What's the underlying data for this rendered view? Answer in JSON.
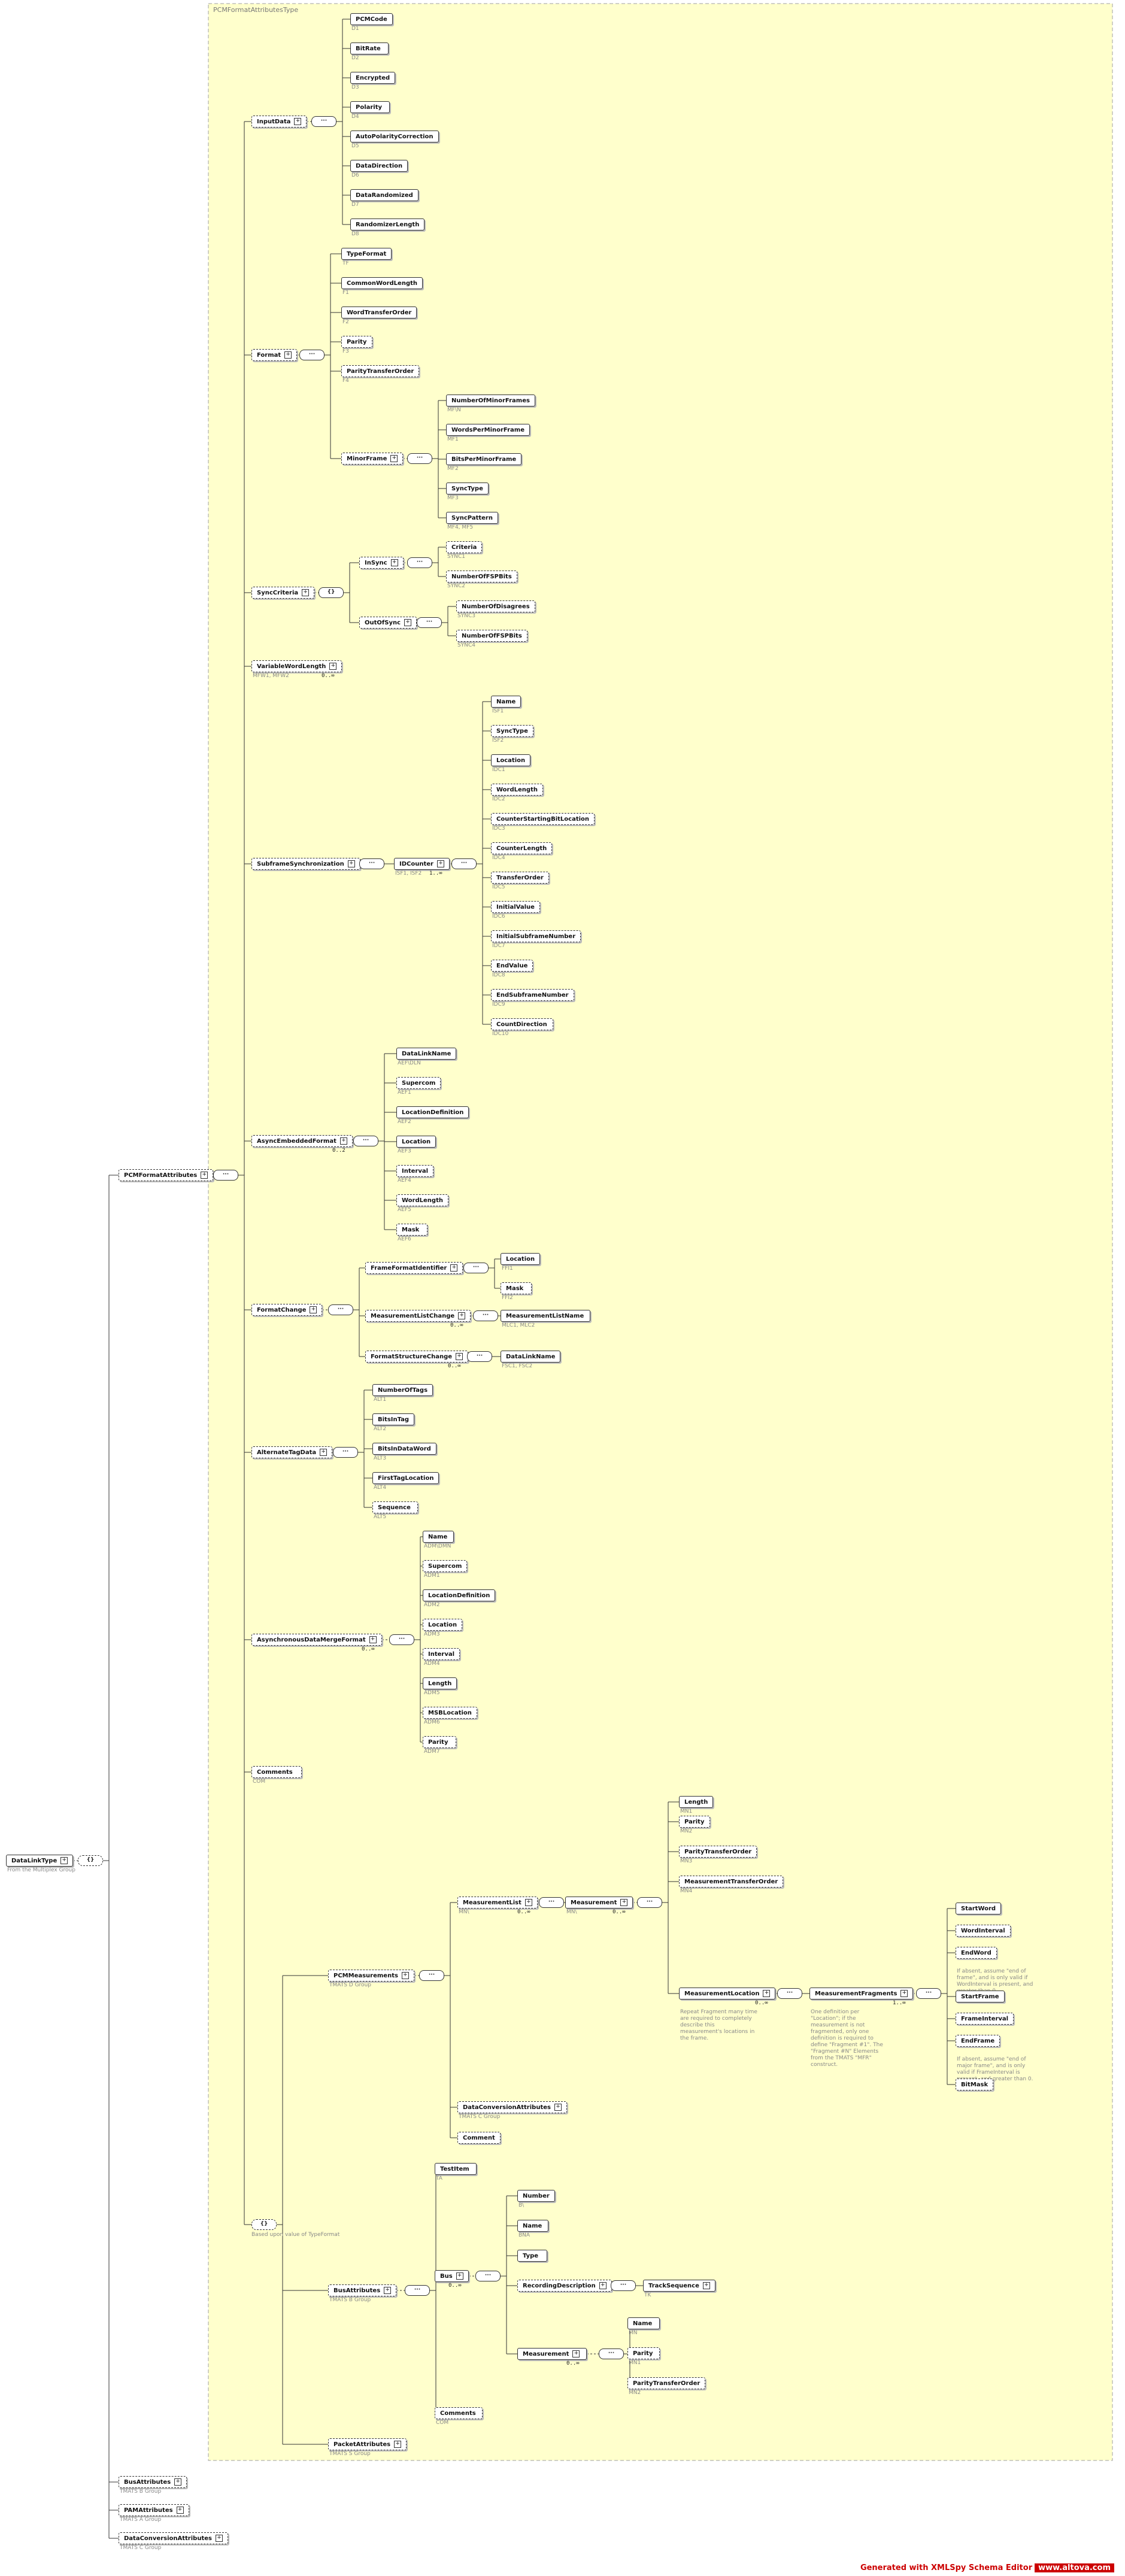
{
  "panel_title": "PCMFormatAttributesType",
  "footer": {
    "text": "Generated with XMLSpy Schema Editor",
    "url": "www.altova.com"
  },
  "labels": {
    "dlt": "DataLinkType",
    "dlt_note": "From the Multiplex Group",
    "pcm_attrs": "PCMFormatAttributes",
    "inputdata": "InputData",
    "pcmcode": "PCMCode",
    "bitrate": "BitRate",
    "encrypted": "Encrypted",
    "polarity": "Polarity",
    "autopol": "AutoPolarityCorrection",
    "datadir": "DataDirection",
    "datarand": "DataRandomized",
    "randlen": "RandomizerLength",
    "format": "Format",
    "typeformat": "TypeFormat",
    "commonwl": "CommonWordLength",
    "wordto": "WordTransferOrder",
    "parity": "Parity",
    "parityto": "ParityTransferOrder",
    "minorframe": "MinorFrame",
    "nminor": "NumberOfMinorFrames",
    "wpm": "WordsPerMinorFrame",
    "bpm": "BitsPerMinorFrame",
    "synctype": "SyncType",
    "syncpattern": "SyncPattern",
    "synccrit": "SyncCriteria",
    "insync": "InSync",
    "criteria": "Criteria",
    "nfspbits": "NumberOfFSPBits",
    "outofsync": "OutOfSync",
    "ndisagree": "NumberOfDisagrees",
    "nfspbits2": "NumberOfFSPBits",
    "varwl": "VariableWordLength",
    "subframe": "SubframeSynchronization",
    "idcounter": "IDCounter",
    "sf_name": "Name",
    "sf_synctype": "SyncType",
    "sf_location": "Location",
    "sf_wl": "WordLength",
    "sf_csbl": "CounterStartingBitLocation",
    "sf_cl": "CounterLength",
    "sf_to": "TransferOrder",
    "sf_init": "InitialValue",
    "sf_isfn": "InitialSubframeNumber",
    "sf_end": "EndValue",
    "sf_esfn": "EndSubframeNumber",
    "sf_cd": "CountDirection",
    "asyncemb": "AsyncEmbeddedFormat",
    "ae_dln": "DataLinkName",
    "ae_super": "Supercom",
    "ae_locdef": "LocationDefinition",
    "ae_loc": "Location",
    "ae_interval": "Interval",
    "ae_wl": "WordLength",
    "ae_mask": "Mask",
    "formatchange": "FormatChange",
    "ffid": "FrameFormatIdentifier",
    "ffid_loc": "Location",
    "ffid_mask": "Mask",
    "mlc": "MeasurementListChange",
    "mlc_name": "MeasurementListName",
    "fsc": "FormatStructureChange",
    "fsc_name": "DataLinkName",
    "alttag": "AlternateTagData",
    "at_ntags": "NumberOfTags",
    "at_bits": "BitsInTag",
    "at_bitsdw": "BitsInDataWord",
    "at_ftl": "FirstTagLocation",
    "at_seq": "Sequence",
    "asyncmerge": "AsynchronousDataMergeFormat",
    "am_name": "Name",
    "am_super": "Supercom",
    "am_locdef": "LocationDefinition",
    "am_loc": "Location",
    "am_interval": "Interval",
    "am_len": "Length",
    "am_msb": "MSBLocation",
    "am_parity": "Parity",
    "comments": "Comments",
    "pcmmeas": "PCMMeasurements",
    "measlist": "MeasurementList",
    "measurement": "Measurement",
    "m_length": "Length",
    "m_parity": "Parity",
    "m_pto": "ParityTransferOrder",
    "m_mto": "MeasurementTransferOrder",
    "measloc": "MeasurementLocation",
    "measfrag": "MeasurementFragments",
    "mf_sw": "StartWord",
    "mf_wi": "WordInterval",
    "mf_ew": "EndWord",
    "mf_sf": "StartFrame",
    "mf_fi": "FrameInterval",
    "mf_ef": "EndFrame",
    "mf_bm": "BitMask",
    "dca": "DataConversionAttributes",
    "pm_comment": "Comment",
    "busattrs": "BusAttributes",
    "testitem": "TestItem",
    "bus": "Bus",
    "b_number": "Number",
    "b_name": "Name",
    "b_type": "Type",
    "recdesc": "RecordingDescription",
    "tracksequence": "TrackSequence",
    "b_meas": "Measurement",
    "bm_name": "Name",
    "bm_parity": "Parity",
    "bm_pto": "ParityTransferOrder",
    "b_comments": "Comments",
    "packetattrs": "PacketAttributes",
    "busattributes2": "BusAttributes",
    "pamattributes": "PAMAttributes",
    "dcattributes2": "DataConversionAttributes"
  },
  "notes": {
    "pcmcode": "D1",
    "bitrate": "D2",
    "encrypted": "D3",
    "polarity": "D4",
    "autopol": "D5",
    "datadir": "D6",
    "datarand": "D7",
    "randlen": "D8",
    "typeformat": "TF",
    "commonwl": "F1",
    "wordto": "F2",
    "parity": "F3",
    "parityto": "F4",
    "nminor": "MF\\N",
    "wpm": "MF1",
    "bpm": "MF2",
    "synctype": "MF3",
    "syncpattern": "MF4, MF5",
    "criteria": "SYNC1",
    "nfspbits": "SYNC2",
    "ndisagree": "SYNC3",
    "nfspbits2": "SYNC4",
    "varwl": "MFW1, MFW2",
    "idcounter": "ISF1, ISF2",
    "sf_name": "ISF1",
    "sf_synctype": "ISF2",
    "sf_location": "IDC1",
    "sf_wl": "IDC2",
    "sf_csbl": "IDC3",
    "sf_cl": "IDC4",
    "sf_to": "IDC5",
    "sf_init": "IDC6",
    "sf_isfn": "IDC7",
    "sf_end": "IDC8",
    "sf_esfn": "IDC9",
    "sf_cd": "IDC10",
    "ae_dln": "AEF\\DLN",
    "ae_super": "AEF1",
    "ae_locdef": "AEF2",
    "ae_loc": "AEF3",
    "ae_interval": "AEF4",
    "ae_wl": "AEF5",
    "ae_mask": "AEF6",
    "ffid_loc": "FFI1",
    "ffid_mask": "FFI2",
    "mlc_name": "MLC1, MLC2",
    "fsc_name": "FSC1, FSC2",
    "at_ntags": "ALT1",
    "at_bits": "ALT2",
    "at_bitsdw": "ALT3",
    "at_ftl": "ALT4",
    "at_seq": "ALT5",
    "am_name": "ADM\\DMN",
    "am_super": "ADM1",
    "am_locdef": "ADM2",
    "am_loc": "ADM3",
    "am_interval": "ADM4",
    "am_len": "ADM5",
    "am_msb": "ADM6",
    "am_parity": "ADM7",
    "comments": "COM",
    "measlist": "MN\\",
    "measurement": "MN\\",
    "m_length": "MN1",
    "m_parity": "MN2",
    "m_pto": "MN3",
    "m_mto": "MN4",
    "pcmmeas": "TMATS D Group",
    "dca": "TMATS C Group",
    "testitem": "TA",
    "b_number": "B\\",
    "b_name": "BNA",
    "tracksequence": "TK",
    "bm_name": "MN",
    "bm_parity": "MN1",
    "bm_pto": "MN2",
    "b_comments": "COM",
    "busattrs": "TMATS B Group",
    "packetattrs": "TMATS S Group",
    "busattributes2": "TMATS B Group",
    "pamattributes": "TMATS A Group",
    "dcattributes2": "TMATS C Group",
    "choice_note": "Based upon value of TypeFormat"
  },
  "occurrences": {
    "varwl": "0..∞",
    "idcounter": "1..∞",
    "asyncemb": "0..2",
    "mlc": "0..∞",
    "fsc": "0..∞",
    "asyncmerge": "0..∞",
    "measlist": "0..∞",
    "measurement": "0..∞",
    "measloc": "0..∞",
    "measfrag": "1..∞",
    "bus": "0..∞",
    "b_meas": "0..∞"
  },
  "docs": {
    "measloc": "Repeat Fragment many time are required to completely describe this measurement's locations in the frame.",
    "measfrag": "One definition per \"Location\"; if the measurement is not fragmented, only one definition is required to define \"Fragment #1\". The \"Fragment #N\" Elements from the TMATS \"MFR\" construct.",
    "mf_ew": "If absent, assume \"end of frame\", and is only valid if WordInterval is present, and greater than 0.",
    "mf_ef": "If absent, assume \"end of major frame\", and is only valid if FrameInterval is present, and greater than 0."
  },
  "colors": {
    "panel_fill": "#ffffcc",
    "panel_border": "#a0a0a0",
    "line": "#333333",
    "note": "#888888",
    "footer": "#cc0000"
  }
}
